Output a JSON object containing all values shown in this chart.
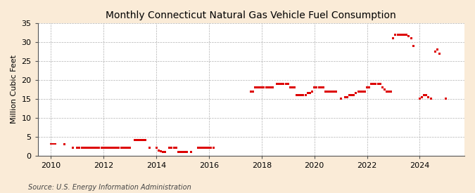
{
  "title": "Monthly Connecticut Natural Gas Vehicle Fuel Consumption",
  "ylabel": "Million Cubic Feet",
  "source": "Source: U.S. Energy Information Administration",
  "background_color": "#faebd7",
  "plot_bg_color": "#ffffff",
  "marker_color": "#dd0000",
  "xlim": [
    2009.5,
    2025.7
  ],
  "ylim": [
    0,
    35
  ],
  "yticks": [
    0,
    5,
    10,
    15,
    20,
    25,
    30,
    35
  ],
  "xticks": [
    2010,
    2012,
    2014,
    2016,
    2018,
    2020,
    2022,
    2024
  ],
  "data": [
    [
      2010.0,
      3.1
    ],
    [
      2010.08,
      3.1
    ],
    [
      2010.17,
      3.1
    ],
    [
      2010.5,
      3.0
    ],
    [
      2010.83,
      2.1
    ],
    [
      2011.0,
      2.1
    ],
    [
      2011.08,
      2.0
    ],
    [
      2011.17,
      2.0
    ],
    [
      2011.25,
      2.0
    ],
    [
      2011.33,
      2.0
    ],
    [
      2011.42,
      2.0
    ],
    [
      2011.5,
      2.0
    ],
    [
      2011.58,
      2.0
    ],
    [
      2011.67,
      2.0
    ],
    [
      2011.75,
      2.0
    ],
    [
      2011.83,
      2.0
    ],
    [
      2011.92,
      2.0
    ],
    [
      2012.0,
      2.0
    ],
    [
      2012.08,
      2.0
    ],
    [
      2012.17,
      2.0
    ],
    [
      2012.25,
      2.0
    ],
    [
      2012.33,
      2.0
    ],
    [
      2012.42,
      2.0
    ],
    [
      2012.5,
      2.0
    ],
    [
      2012.58,
      2.0
    ],
    [
      2012.67,
      2.0
    ],
    [
      2012.75,
      2.0
    ],
    [
      2012.83,
      2.0
    ],
    [
      2012.92,
      2.0
    ],
    [
      2013.0,
      2.0
    ],
    [
      2013.17,
      4.1
    ],
    [
      2013.25,
      4.2
    ],
    [
      2013.33,
      4.2
    ],
    [
      2013.42,
      4.2
    ],
    [
      2013.5,
      4.2
    ],
    [
      2013.58,
      4.2
    ],
    [
      2013.75,
      2.1
    ],
    [
      2014.0,
      2.0
    ],
    [
      2014.08,
      1.3
    ],
    [
      2014.17,
      1.1
    ],
    [
      2014.25,
      1.0
    ],
    [
      2014.33,
      1.0
    ],
    [
      2014.5,
      2.1
    ],
    [
      2014.58,
      2.1
    ],
    [
      2014.67,
      2.1
    ],
    [
      2014.75,
      2.1
    ],
    [
      2014.83,
      1.0
    ],
    [
      2014.92,
      1.0
    ],
    [
      2015.0,
      1.0
    ],
    [
      2015.08,
      1.0
    ],
    [
      2015.17,
      1.0
    ],
    [
      2015.33,
      1.0
    ],
    [
      2015.58,
      2.1
    ],
    [
      2015.67,
      2.1
    ],
    [
      2015.75,
      2.1
    ],
    [
      2015.83,
      2.1
    ],
    [
      2015.92,
      2.1
    ],
    [
      2016.0,
      2.1
    ],
    [
      2016.08,
      2.1
    ],
    [
      2016.17,
      2.1
    ],
    [
      2017.58,
      17.0
    ],
    [
      2017.67,
      17.0
    ],
    [
      2017.75,
      18.0
    ],
    [
      2017.83,
      18.0
    ],
    [
      2017.92,
      18.0
    ],
    [
      2018.0,
      18.0
    ],
    [
      2018.08,
      18.0
    ],
    [
      2018.17,
      18.0
    ],
    [
      2018.25,
      18.0
    ],
    [
      2018.33,
      18.0
    ],
    [
      2018.42,
      18.0
    ],
    [
      2018.58,
      19.0
    ],
    [
      2018.67,
      19.0
    ],
    [
      2018.75,
      19.0
    ],
    [
      2018.83,
      19.0
    ],
    [
      2018.92,
      19.0
    ],
    [
      2019.0,
      19.0
    ],
    [
      2019.08,
      18.0
    ],
    [
      2019.17,
      18.0
    ],
    [
      2019.25,
      18.0
    ],
    [
      2019.33,
      16.0
    ],
    [
      2019.42,
      16.0
    ],
    [
      2019.5,
      16.0
    ],
    [
      2019.58,
      16.0
    ],
    [
      2019.67,
      16.0
    ],
    [
      2019.75,
      16.5
    ],
    [
      2019.83,
      16.5
    ],
    [
      2019.92,
      17.0
    ],
    [
      2020.0,
      18.0
    ],
    [
      2020.08,
      18.0
    ],
    [
      2020.17,
      18.0
    ],
    [
      2020.25,
      18.0
    ],
    [
      2020.33,
      18.0
    ],
    [
      2020.42,
      17.0
    ],
    [
      2020.5,
      17.0
    ],
    [
      2020.58,
      17.0
    ],
    [
      2020.67,
      17.0
    ],
    [
      2020.75,
      17.0
    ],
    [
      2020.83,
      17.0
    ],
    [
      2021.0,
      15.0
    ],
    [
      2021.17,
      15.5
    ],
    [
      2021.25,
      15.5
    ],
    [
      2021.33,
      16.0
    ],
    [
      2021.42,
      16.0
    ],
    [
      2021.5,
      16.0
    ],
    [
      2021.58,
      16.5
    ],
    [
      2021.67,
      17.0
    ],
    [
      2021.75,
      17.0
    ],
    [
      2021.83,
      17.0
    ],
    [
      2021.92,
      17.0
    ],
    [
      2022.0,
      18.0
    ],
    [
      2022.08,
      18.0
    ],
    [
      2022.17,
      19.0
    ],
    [
      2022.25,
      19.0
    ],
    [
      2022.33,
      19.0
    ],
    [
      2022.42,
      19.0
    ],
    [
      2022.5,
      19.0
    ],
    [
      2022.58,
      18.0
    ],
    [
      2022.67,
      17.5
    ],
    [
      2022.75,
      17.0
    ],
    [
      2022.83,
      17.0
    ],
    [
      2022.92,
      17.0
    ],
    [
      2023.0,
      31.0
    ],
    [
      2023.08,
      32.0
    ],
    [
      2023.17,
      32.0
    ],
    [
      2023.25,
      32.0
    ],
    [
      2023.33,
      32.0
    ],
    [
      2023.42,
      32.0
    ],
    [
      2023.5,
      32.0
    ],
    [
      2023.58,
      31.5
    ],
    [
      2023.67,
      31.0
    ],
    [
      2023.75,
      29.0
    ],
    [
      2024.0,
      15.0
    ],
    [
      2024.08,
      15.5
    ],
    [
      2024.17,
      16.0
    ],
    [
      2024.25,
      16.0
    ],
    [
      2024.33,
      15.5
    ],
    [
      2024.42,
      15.0
    ],
    [
      2024.58,
      27.5
    ],
    [
      2024.67,
      28.0
    ],
    [
      2024.75,
      27.0
    ],
    [
      2025.0,
      15.0
    ]
  ]
}
